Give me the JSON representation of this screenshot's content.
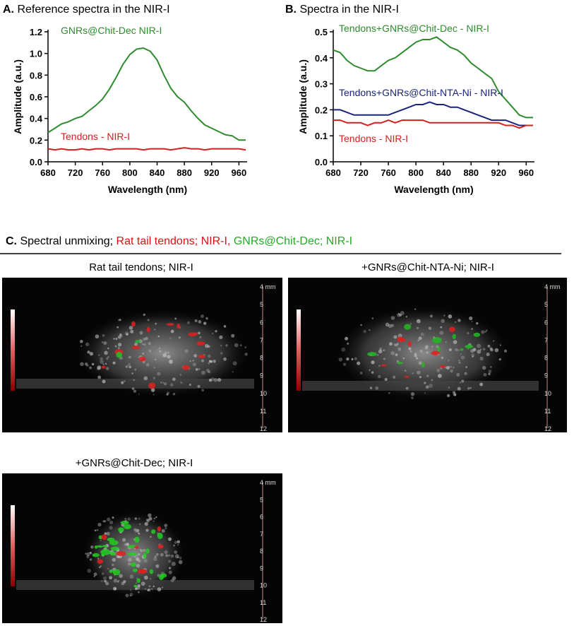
{
  "chart_data": [
    {
      "type": "line",
      "panel": "A.",
      "title": "Reference spectra in the NIR-I",
      "x_label": "Wavelength (nm)",
      "y_label": "Amplitude (a.u.)",
      "x": [
        680,
        690,
        700,
        710,
        720,
        730,
        740,
        750,
        760,
        770,
        780,
        790,
        800,
        810,
        820,
        830,
        840,
        850,
        860,
        870,
        880,
        890,
        900,
        910,
        920,
        930,
        940,
        950,
        960,
        970
      ],
      "xlim": [
        680,
        972
      ],
      "xticks": [
        680,
        720,
        760,
        800,
        840,
        880,
        920,
        960
      ],
      "ylim": [
        0,
        1.2
      ],
      "yticks": [
        {
          "value": 0,
          "label": "0.0"
        },
        0.2,
        0.4,
        0.6,
        0.8,
        {
          "value": 1,
          "label": "1.0"
        },
        1.2
      ],
      "series": [
        {
          "name": "GNRs@Chit-Dec NIR-I",
          "color": "#2e8b2e",
          "values": [
            0.27,
            0.31,
            0.35,
            0.37,
            0.4,
            0.42,
            0.47,
            0.52,
            0.58,
            0.67,
            0.78,
            0.9,
            0.99,
            1.04,
            1.05,
            1.02,
            0.94,
            0.8,
            0.68,
            0.6,
            0.55,
            0.47,
            0.4,
            0.34,
            0.31,
            0.28,
            0.25,
            0.24,
            0.2,
            0.2
          ]
        },
        {
          "name": "Tendons - NIR-I",
          "color": "#d42020",
          "values": [
            0.12,
            0.11,
            0.12,
            0.11,
            0.11,
            0.12,
            0.11,
            0.12,
            0.12,
            0.11,
            0.12,
            0.12,
            0.12,
            0.12,
            0.11,
            0.12,
            0.12,
            0.12,
            0.11,
            0.12,
            0.13,
            0.12,
            0.12,
            0.11,
            0.12,
            0.12,
            0.12,
            0.12,
            0.12,
            0.11
          ]
        }
      ]
    },
    {
      "type": "line",
      "panel": "B.",
      "title": "Spectra in the NIR-I",
      "x_label": "Wavelength (nm)",
      "y_label": "Amplitude (a.u.)",
      "x": [
        680,
        690,
        700,
        710,
        720,
        730,
        740,
        750,
        760,
        770,
        780,
        790,
        800,
        810,
        820,
        830,
        840,
        850,
        860,
        870,
        880,
        890,
        900,
        910,
        920,
        930,
        940,
        950,
        960,
        970
      ],
      "xlim": [
        680,
        972
      ],
      "xticks": [
        680,
        720,
        760,
        800,
        840,
        880,
        920,
        960
      ],
      "ylim": [
        0,
        0.5
      ],
      "yticks": [
        {
          "value": 0,
          "label": "0.0"
        },
        0.1,
        0.2,
        0.3,
        0.4,
        0.5
      ],
      "series": [
        {
          "name": "Tendons+GNRs@Chit-Dec - NIR-I",
          "color": "#2e8b2e",
          "values": [
            0.43,
            0.42,
            0.39,
            0.37,
            0.36,
            0.35,
            0.35,
            0.37,
            0.39,
            0.4,
            0.42,
            0.44,
            0.46,
            0.47,
            0.47,
            0.48,
            0.46,
            0.44,
            0.43,
            0.41,
            0.38,
            0.36,
            0.34,
            0.32,
            0.27,
            0.24,
            0.21,
            0.18,
            0.17,
            0.17
          ]
        },
        {
          "name": "Tendons+GNRs@Chit-NTA-Ni - NIR-I",
          "color": "#1a237e",
          "values": [
            0.2,
            0.2,
            0.19,
            0.18,
            0.18,
            0.18,
            0.18,
            0.18,
            0.18,
            0.19,
            0.2,
            0.21,
            0.22,
            0.22,
            0.23,
            0.22,
            0.22,
            0.21,
            0.21,
            0.2,
            0.19,
            0.18,
            0.17,
            0.16,
            0.16,
            0.16,
            0.15,
            0.14,
            0.14,
            0.14
          ]
        },
        {
          "name": "Tendons - NIR-I",
          "color": "#d42020",
          "values": [
            0.16,
            0.16,
            0.15,
            0.15,
            0.15,
            0.14,
            0.15,
            0.15,
            0.16,
            0.15,
            0.16,
            0.16,
            0.16,
            0.16,
            0.15,
            0.15,
            0.15,
            0.15,
            0.15,
            0.15,
            0.15,
            0.15,
            0.15,
            0.15,
            0.15,
            0.14,
            0.14,
            0.13,
            0.14,
            0.14
          ]
        }
      ]
    }
  ],
  "panel_c": {
    "label": "C.",
    "heading": "Spectral unmixing;",
    "red_part": "Rat tail tendons; NIR-I,",
    "green_part": "GNRs@Chit-Dec; NIR-I",
    "images": [
      {
        "title": "Rat tail tendons; NIR-I"
      },
      {
        "title": "+GNRs@Chit-NTA-Ni; NIR-I"
      },
      {
        "title": "+GNRs@Chit-Dec; NIR-I"
      }
    ],
    "depth_labels": [
      "4 mm",
      "5",
      "6",
      "7",
      "8",
      "9",
      "10",
      "11",
      "12"
    ]
  }
}
